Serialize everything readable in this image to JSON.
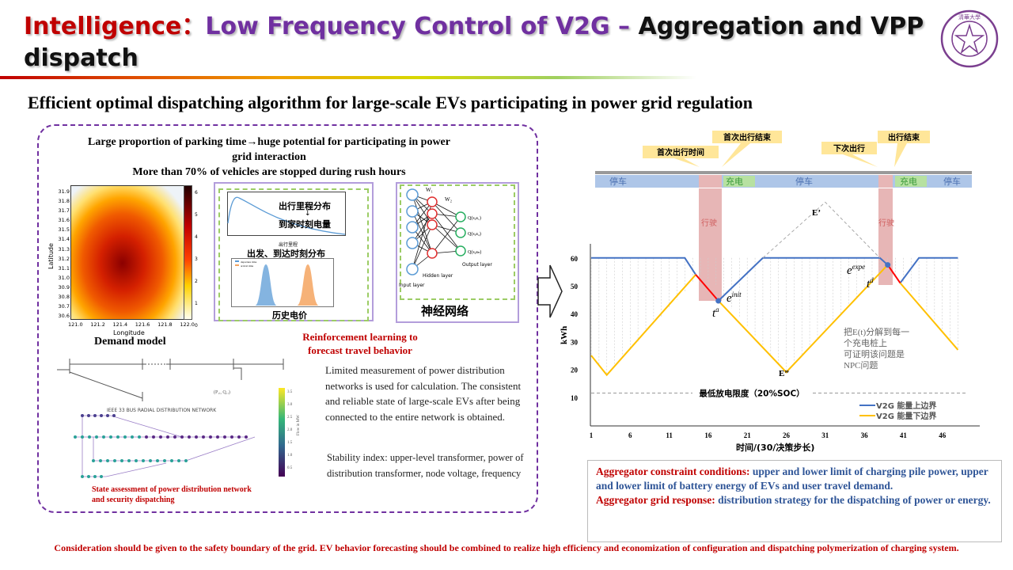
{
  "header": {
    "title_part1": "Intelligence：",
    "title_part2": "Low Frequency Control of V2G –",
    "title_part3": " Aggregation and VPP dispatch",
    "logo_text": "清華大學"
  },
  "subtitle": "Efficient optimal dispatching algorithm for large-scale EVs participating in power grid regulation",
  "left": {
    "intro": [
      "Large proportion of parking time→huge potential for participating in power",
      "grid interaction",
      "More than 70% of vehicles are stopped during rush hours"
    ],
    "heatmap": {
      "ylabel": "Latitude",
      "xlabel": "Longitude",
      "yticks": [
        "31.9",
        "31.8",
        "31.7",
        "31.6",
        "31.5",
        "31.4",
        "31.3",
        "31.2",
        "31.1",
        "31.0",
        "30.9",
        "30.8",
        "30.7",
        "30.6"
      ],
      "xticks": [
        "121.0",
        "121.2",
        "121.4",
        "121.6",
        "121.8",
        "122.0"
      ],
      "cbar_ticks": [
        "6",
        "5",
        "4",
        "3",
        "2",
        "1",
        "0"
      ]
    },
    "demand_model": "Demand model",
    "dist_panel": {
      "text1": "出行里程分布",
      "arrow": "↓",
      "text2": "到家时刻电量",
      "xlabel": "出行里程",
      "title2": "出发、到达时刻分布",
      "legend": [
        "departure time",
        "arrival time"
      ],
      "bottom": "历史电价"
    },
    "nn_panel": {
      "w1": "W₁",
      "w2": "W₂",
      "outputs": [
        "Q(s,a₁)",
        "Q(s,a₂)",
        "Q(s,aₙ)"
      ],
      "output_layer": "Output layer",
      "hidden_layer": "Hidden layer",
      "input_layer": "Input layer",
      "caption": "神经网络"
    },
    "rl_caption": [
      "Reinforcement learning to",
      "forecast travel behavior"
    ],
    "measurement": [
      "Limited measurement of power distribution",
      "networks is used for calculation. The consistent",
      "and reliable state of large-scale EVs after being",
      "connected to the entire network is obtained."
    ],
    "stability": [
      "Stability index: upper-level transformer, power of",
      "distribution transformer, node voltage, frequency"
    ],
    "network": {
      "title": "IEEE 33 BUS RADIAL DISTRIBUTION NETWORK",
      "load": "(P₁ᵢ, Q₁ᵢ)",
      "cbar_label": "Flow in MW",
      "cbar_ticks": [
        "3.5",
        "3.0",
        "2.5",
        "2.0",
        "1.5",
        "1.0",
        "0.5"
      ]
    },
    "state_caption": [
      "State assessment of power distribution network",
      "and security dispatching"
    ]
  },
  "chart_data": {
    "type": "line",
    "ylabel": "kWh",
    "xlabel": "时间/(30/决策步长)",
    "xticks": [
      1,
      6,
      11,
      16,
      21,
      26,
      31,
      36,
      41,
      46
    ],
    "yticks": [
      10,
      20,
      30,
      40,
      50,
      60
    ],
    "xlim": [
      1,
      50
    ],
    "ylim": [
      0,
      70
    ],
    "series": [
      {
        "name": "V2G 能量上边界",
        "color": "#4472c4",
        "x": [
          1,
          13,
          14.4
        ],
        "y": [
          60,
          60,
          54
        ]
      },
      {
        "name": "",
        "color": "#4472c4",
        "x": [
          17.3,
          23,
          38,
          39
        ],
        "y": [
          44.6,
          60,
          60,
          57.5
        ]
      },
      {
        "name": "",
        "color": "#4472c4",
        "x": [
          40.6,
          43,
          48
        ],
        "y": [
          51,
          60,
          60
        ]
      },
      {
        "name": "V2G 能量下边界",
        "color": "#ffc000",
        "x": [
          1,
          3,
          14.4
        ],
        "y": [
          25,
          18,
          54
        ]
      },
      {
        "name": "",
        "color": "#ffc000",
        "x": [
          17.3,
          26,
          39
        ],
        "y": [
          44.6,
          19,
          57.5
        ]
      },
      {
        "name": "",
        "color": "#ffc000",
        "x": [
          40.6,
          48
        ],
        "y": [
          51,
          27
        ]
      },
      {
        "name": "",
        "color": "#ff0000",
        "x": [
          14.4,
          17.3
        ],
        "y": [
          54,
          44.6
        ]
      },
      {
        "name": "",
        "color": "#ff0000",
        "x": [
          39,
          40.6
        ],
        "y": [
          57.5,
          51
        ]
      },
      {
        "name": "",
        "color": "#aaaaaa",
        "dashed": true,
        "x": [
          23,
          31,
          38
        ],
        "y": [
          60,
          80,
          60
        ]
      }
    ],
    "min_discharge": {
      "value": 11.5,
      "label": "最低放电限度（20%SOC）"
    },
    "annotations": {
      "E_prime": "E’",
      "E_double": "E”",
      "e_init": "e",
      "e_init_sup": "init",
      "t_a": "t",
      "t_a_sup": "a",
      "e_expe": "e",
      "e_expe_sup": "expe",
      "t_d": "t",
      "t_d_sup": "d",
      "npc": [
        "把E(t)分解到每一",
        "个充电桩上",
        "可证明该问题是",
        "NPC问题"
      ]
    },
    "timeline": {
      "callouts": [
        "首次出行时间",
        "首次出行结束",
        "下次出行",
        "出行结束"
      ],
      "states": [
        "停车",
        "充电",
        "停车",
        "充电",
        "停车"
      ],
      "driving": "行驶"
    }
  },
  "bottom_box": {
    "label1": "Aggregator constraint conditions:",
    "text1": " upper and lower limit of charging pile power, upper and lower limit of battery energy of EVs and user travel demand.",
    "label2": "Aggregator grid response:",
    "text2": " distribution strategy for the dispatching of power or energy."
  },
  "footer": "Consideration should be given to the safety boundary of the grid. EV behavior forecasting should be combined to realize high efficiency and economization of configuration and dispatching polymerization of charging system."
}
